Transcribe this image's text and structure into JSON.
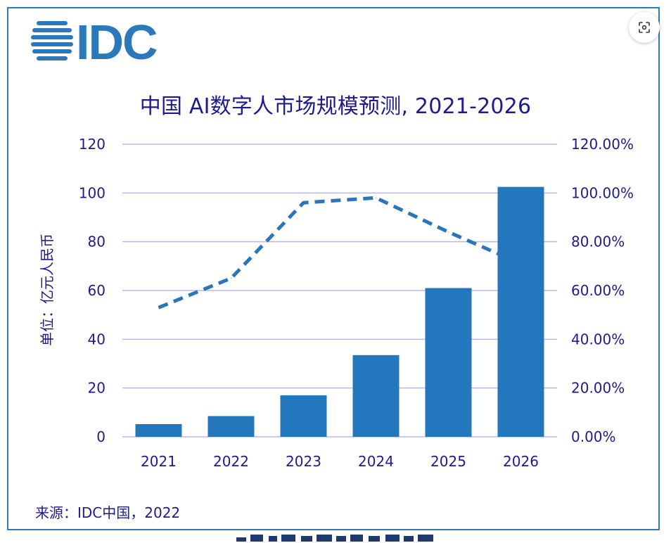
{
  "logo": {
    "text": "IDC"
  },
  "chart_data": {
    "type": "bar",
    "title": "中国 AI数字人市场规模预测, 2021-2026",
    "ylabel": "单位：亿元人民币",
    "categories": [
      "2021",
      "2022",
      "2023",
      "2024",
      "2025",
      "2026"
    ],
    "series": [
      {
        "type": "bar",
        "values": [
          5.2,
          8.5,
          17.0,
          33.5,
          61.0,
          102.5
        ]
      },
      {
        "type": "line",
        "style": "dashed",
        "axis": "right",
        "values": [
          53,
          65,
          96,
          98,
          84,
          71
        ]
      }
    ],
    "ylim": [
      0,
      120
    ],
    "yticks": [
      "0",
      "20",
      "40",
      "60",
      "80",
      "100",
      "120"
    ],
    "y2lim": [
      0,
      120
    ],
    "y2ticks": [
      "0.00%",
      "20.00%",
      "40.00%",
      "60.00%",
      "80.00%",
      "100.00%",
      "120.00%"
    ],
    "grid": true,
    "colors": {
      "bar": "#2378bd",
      "line": "#2b76b8",
      "grid": "#b8b8ee",
      "text": "#1f1a8f"
    }
  },
  "source": "来源：IDC中国，2022",
  "controls": {
    "fab_icon": "screen-capture-icon"
  }
}
